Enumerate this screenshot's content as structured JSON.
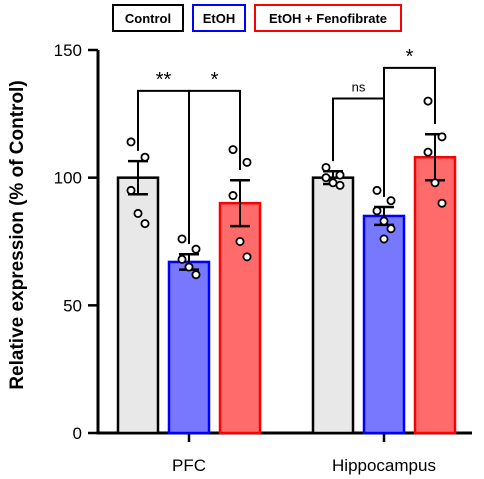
{
  "chart_data": {
    "type": "bar",
    "ylabel": "Relative expression (% of Control)",
    "ylim": [
      0,
      150
    ],
    "yticks": [
      "0",
      "50",
      "100",
      "150"
    ],
    "categories": [
      "PFC",
      "Hippocampus"
    ],
    "legend": {
      "placement": "top",
      "entries": [
        "Control",
        "EtOH",
        "EtOH + Fenofibrate"
      ]
    },
    "series": [
      {
        "name": "Control",
        "fill": "#e8e8e8",
        "stroke": "#000000",
        "values": [
          100,
          100
        ],
        "sem": [
          6.5,
          2.5
        ],
        "points": [
          [
            114,
            108,
            95,
            86,
            82
          ],
          [
            104,
            101,
            100,
            98,
            97
          ]
        ]
      },
      {
        "name": "EtOH",
        "fill": "#7878ff",
        "stroke": "#0000ff",
        "values": [
          67,
          85
        ],
        "sem": [
          3,
          3.5
        ],
        "points": [
          [
            76,
            72,
            68,
            65,
            62
          ],
          [
            95,
            91,
            87,
            83,
            80,
            76
          ]
        ]
      },
      {
        "name": "EtOH + Fenofibrate",
        "fill": "#ff6b6b",
        "stroke": "#ff0000",
        "values": [
          90,
          108
        ],
        "sem": [
          9,
          9
        ],
        "points": [
          [
            111,
            106,
            93,
            75,
            69
          ],
          [
            130,
            116,
            110,
            98,
            90
          ]
        ]
      }
    ],
    "annotations": [
      {
        "group": 0,
        "from": 0,
        "to": 1,
        "label": "**",
        "y": 134
      },
      {
        "group": 0,
        "from": 1,
        "to": 2,
        "label": "*",
        "y": 134
      },
      {
        "group": 1,
        "from": 0,
        "to": 1,
        "label": "ns",
        "y": 131
      },
      {
        "group": 1,
        "from": 1,
        "to": 2,
        "label": "*",
        "y": 143
      }
    ]
  }
}
